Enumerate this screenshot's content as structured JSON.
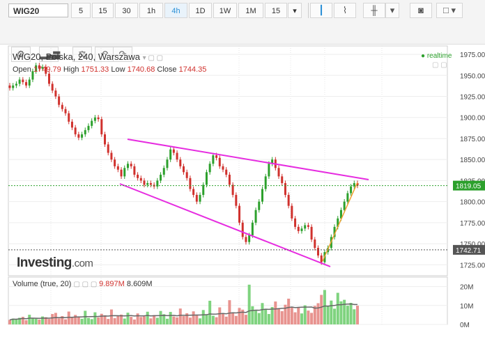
{
  "toolbar": {
    "symbol": "WIG20",
    "intervals": [
      "5",
      "15",
      "30",
      "1h",
      "4h",
      "1D",
      "1W",
      "1M",
      "15"
    ],
    "active_interval": "4h",
    "icons": [
      "candles-icon",
      "line-chart-icon",
      "bars-icon",
      "camera-icon",
      "color-box-icon"
    ]
  },
  "toolbar2": {
    "icons": [
      "gear-icon",
      "indicators-icon",
      "scale-icon",
      "undo-icon",
      "redo-icon"
    ]
  },
  "chart": {
    "title": "WIG20, Polska, 240, Warszawa",
    "ohlc": {
      "open_label": "Open",
      "open": "1749.79",
      "high_label": "High",
      "high": "1751.33",
      "low_label": "Low",
      "low": "1740.68",
      "close_label": "Close",
      "close": "1744.35"
    },
    "realtime": "realtime",
    "price_labels": [
      {
        "value": 1819.05,
        "text": "1819.05",
        "color": "#2ca02c"
      },
      {
        "value": 1742.71,
        "text": "1742.71",
        "color": "#555555"
      }
    ],
    "logo": {
      "brand": "Investing",
      "suffix": ".com"
    }
  },
  "volume": {
    "label": "Volume (true, 20)",
    "value1": "9.897M",
    "value2": "8.609M",
    "ticks": [
      "20M",
      "10M",
      "0M"
    ]
  },
  "colors": {
    "up": "#2ca02c",
    "down": "#d0312d",
    "trend": "#e62ce0",
    "trend2": "#f0a030"
  },
  "chart_data": {
    "type": "candlestick",
    "y_ticks": [
      1725,
      1750,
      1775,
      1800,
      1825,
      1850,
      1875,
      1900,
      1925,
      1950,
      1975
    ],
    "ylim": [
      1712,
      1985
    ],
    "close": [
      1935,
      1938,
      1940,
      1945,
      1942,
      1938,
      1945,
      1955,
      1962,
      1958,
      1960,
      1952,
      1940,
      1932,
      1925,
      1915,
      1910,
      1905,
      1895,
      1888,
      1880,
      1876,
      1880,
      1885,
      1890,
      1896,
      1900,
      1898,
      1880,
      1868,
      1858,
      1850,
      1842,
      1838,
      1830,
      1840,
      1845,
      1842,
      1832,
      1828,
      1825,
      1820,
      1822,
      1820,
      1818,
      1825,
      1832,
      1840,
      1850,
      1862,
      1858,
      1850,
      1842,
      1835,
      1828,
      1815,
      1808,
      1800,
      1808,
      1820,
      1835,
      1845,
      1855,
      1852,
      1842,
      1838,
      1832,
      1820,
      1808,
      1795,
      1775,
      1758,
      1752,
      1760,
      1775,
      1790,
      1800,
      1815,
      1830,
      1845,
      1850,
      1840,
      1830,
      1822,
      1808,
      1795,
      1780,
      1770,
      1765,
      1768,
      1772,
      1770,
      1755,
      1745,
      1736,
      1728,
      1740,
      1745,
      1758,
      1770,
      1780,
      1790,
      1800,
      1810,
      1818,
      1822,
      1819
    ],
    "volume_millions": [
      2.4,
      3.1,
      2.8,
      3.5,
      4.0,
      2.2,
      5.1,
      3.3,
      3.0,
      2.6,
      4.2,
      3.8,
      2.9,
      5.5,
      6.1,
      3.2,
      4.4,
      2.7,
      6.8,
      3.6,
      5.0,
      4.1,
      3.0,
      7.2,
      3.4,
      2.8,
      6.4,
      3.7,
      5.6,
      4.8,
      2.9,
      7.9,
      3.3,
      4.6,
      5.2,
      3.1,
      6.2,
      4.0,
      2.6,
      5.8,
      3.9,
      4.3,
      6.7,
      3.2,
      4.9,
      3.5,
      7.1,
      5.4,
      3.0,
      6.6,
      4.2,
      3.7,
      8.4,
      4.4,
      5.9,
      3.6,
      6.9,
      4.8,
      3.2,
      7.6,
      5.1,
      12.5,
      4.6,
      3.8,
      9.0,
      5.7,
      4.1,
      12.8,
      6.3,
      4.5,
      8.7,
      7.8,
      5.1,
      21.0,
      9.6,
      7.2,
      6.0,
      11.3,
      8.1,
      5.5,
      9.2,
      12.1,
      8.6,
      7.0,
      10.4,
      13.6,
      9.3,
      6.4,
      8.9,
      5.8,
      10.1,
      7.3,
      6.1,
      9.8,
      11.2,
      15.6,
      18.2,
      9.5,
      12.6,
      8.3,
      16.7,
      12.2,
      13.0,
      9.9,
      11.4,
      8.0,
      9.9
    ],
    "annotations": [
      "falling wedge upper trendline",
      "falling wedge lower trendline",
      "breakout trendline"
    ]
  }
}
